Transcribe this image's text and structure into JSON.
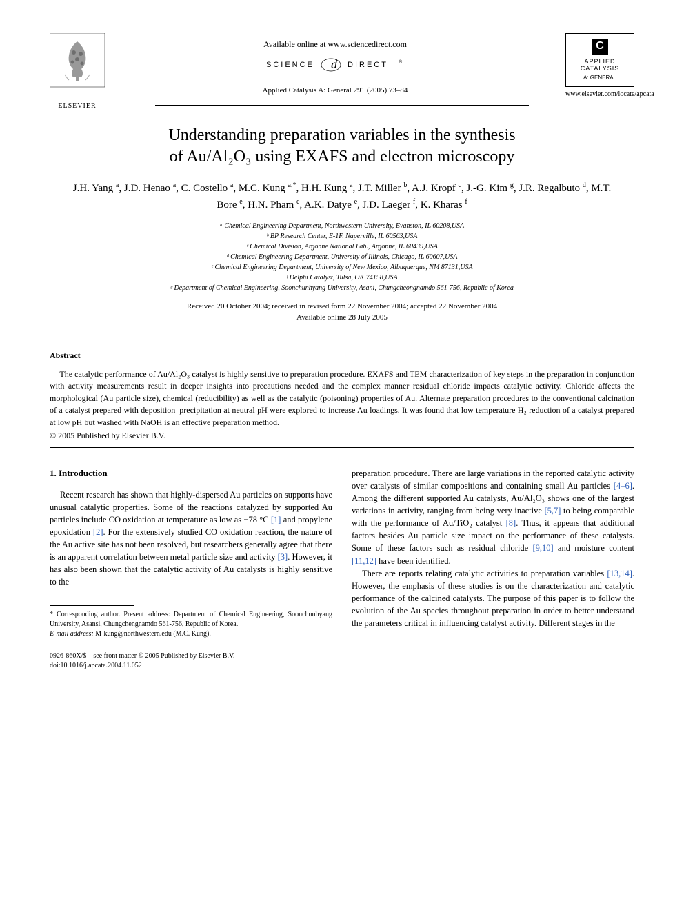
{
  "header": {
    "available_online": "Available online at www.sciencedirect.com",
    "science_direct_label": "SCIENCE @ DIRECT®",
    "journal_reference": "Applied Catalysis A: General 291 (2005) 73–84",
    "publisher_name": "ELSEVIER",
    "journal_logo_top": "APPLIED",
    "journal_logo_mid": "CATALYSIS",
    "journal_logo_sub": "A: GENERAL",
    "journal_url": "www.elsevier.com/locate/apcata"
  },
  "title_line1": "Understanding preparation variables in the synthesis",
  "title_line2": "of Au/Al₂O₃ using EXAFS and electron microscopy",
  "authors_html": "J.H. Yang <sup>a</sup>, J.D. Henao <sup>a</sup>, C. Costello <sup>a</sup>, M.C. Kung <sup>a,*</sup>, H.H. Kung <sup>a</sup>, J.T. Miller <sup>b</sup>, A.J. Kropf <sup>c</sup>, J.-G. Kim <sup>g</sup>, J.R. Regalbuto <sup>d</sup>, M.T. Bore <sup>e</sup>, H.N. Pham <sup>e</sup>, A.K. Datye <sup>e</sup>, J.D. Laeger <sup>f</sup>, K. Kharas <sup>f</sup>",
  "affiliations": [
    "ᵃ Chemical Engineering Department, Northwestern University, Evanston, IL 60208,USA",
    "ᵇ BP Research Center, E-1F, Naperville, IL 60563,USA",
    "ᶜ Chemical Division, Argonne National Lab., Argonne, IL 60439,USA",
    "ᵈ Chemical Engineering Department, University of Illinois, Chicago, IL 60607,USA",
    "ᵉ Chemical Engineering Department, University of New Mexico, Albuquerque, NM 87131,USA",
    "ᶠ Delphi Catalyst, Tulsa, OK 74158,USA",
    "ᵍ Department of Chemical Engineering, Soonchunhyang University, Asani, Chungcheongnamdo 561-756, Republic of Korea"
  ],
  "dates": {
    "received": "Received 20 October 2004; received in revised form 22 November 2004; accepted 22 November 2004",
    "online": "Available online 28 July 2005"
  },
  "abstract": {
    "heading": "Abstract",
    "text": "The catalytic performance of Au/Al₂O₃ catalyst is highly sensitive to preparation procedure. EXAFS and TEM characterization of key steps in the preparation in conjunction with activity measurements result in deeper insights into precautions needed and the complex manner residual chloride impacts catalytic activity. Chloride affects the morphological (Au particle size), chemical (reducibility) as well as the catalytic (poisoning) properties of Au. Alternate preparation procedures to the conventional calcination of a catalyst prepared with deposition–precipitation at neutral pH were explored to increase Au loadings. It was found that low temperature H₂ reduction of a catalyst prepared at low pH but washed with NaOH is an effective preparation method.",
    "copyright": "© 2005 Published by Elsevier B.V."
  },
  "section1": {
    "heading": "1.  Introduction",
    "p1_a": "Recent research has shown that highly-dispersed Au particles on supports have unusual catalytic properties. Some of the reactions catalyzed by supported Au particles include CO oxidation at temperature as low as −78 °C ",
    "ref1": "[1]",
    "p1_b": " and propylene epoxidation ",
    "ref2": "[2]",
    "p1_c": ". For the extensively studied CO oxidation reaction, the nature of the Au active site has not been resolved, but researchers generally agree that there is an apparent correlation between metal particle size and activity ",
    "ref3": "[3]",
    "p1_d": ". However, it has also been shown that the catalytic activity of Au catalysts is highly sensitive to the",
    "p2_a": "preparation procedure. There are large variations in the reported catalytic activity over catalysts of similar compositions and containing small Au particles ",
    "ref4": "[4–6]",
    "p2_b": ". Among the different supported Au catalysts, Au/Al₂O₃ shows one of the largest variations in activity, ranging from being very inactive ",
    "ref5": "[5,7]",
    "p2_c": " to being comparable with the performance of Au/TiO₂ catalyst ",
    "ref6": "[8]",
    "p2_d": ". Thus, it appears that additional factors besides Au particle size impact on the performance of these catalysts. Some of these factors such as residual chloride ",
    "ref7": "[9,10]",
    "p2_e": " and moisture content ",
    "ref8": "[11,12]",
    "p2_f": " have been identified.",
    "p3_a": "There are reports relating catalytic activities to preparation variables ",
    "ref9": "[13,14]",
    "p3_b": ". However, the emphasis of these studies is on the characterization and catalytic performance of the calcined catalysts. The purpose of this paper is to follow the evolution of the Au species throughout preparation in order to better understand the parameters critical in influencing catalyst activity. Different stages in the"
  },
  "footnote": {
    "corresponding": "* Corresponding author. Present address: Department of Chemical Engineering, Soonchunhyang University, Asansi, Chungchengnamdo 561-756, Republic of Korea.",
    "email_label": "E-mail address:",
    "email": "M-kung@northwestern.edu (M.C. Kung)."
  },
  "footer": {
    "issn": "0926-860X/$ – see front matter © 2005 Published by Elsevier B.V.",
    "doi": "doi:10.1016/j.apcata.2004.11.052"
  },
  "colors": {
    "text": "#000000",
    "link": "#2e5fb8",
    "background": "#ffffff"
  },
  "typography": {
    "title_fontsize": 24,
    "authors_fontsize": 15,
    "body_fontsize": 12.5,
    "abstract_fontsize": 12,
    "affiliation_fontsize": 10,
    "footnote_fontsize": 10
  }
}
